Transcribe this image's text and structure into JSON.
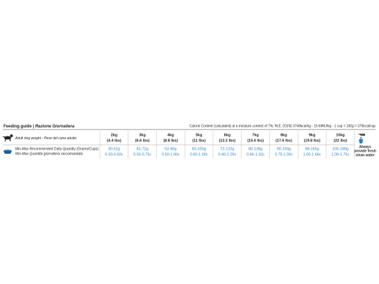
{
  "header": {
    "title": "Feeding guide",
    "separator": "|",
    "subtitle": "Razione Giornaliera",
    "calorie_note": "Calorie Content (calculated) at a moisture content of 7%: M.E. (CEN) 3749kcal/kg - 15.69MJ/kg - 1 cup = 100g = 375kcal/cup"
  },
  "table": {
    "weight_label": "Adult dog weight",
    "weight_label_it": "- Peso del cane adulto",
    "quantity_label": "Min-Max Recommended Daily Quantity (Grams/Cups)",
    "quantity_label_it": "Min-Max Quantità giornaliera raccomandata",
    "weights_kg": [
      "2kg",
      "3kg",
      "4kg",
      "5kg",
      "6kg",
      "7kg",
      "8kg",
      "9kg",
      "10kg"
    ],
    "weights_lbs": [
      "(4.4 lbs)",
      "(6.6 lbs)",
      "(8.8 lbs)",
      "(11 lbs)",
      "(13.2 lbs)",
      "(15.4 lbs)",
      "(17.6 lbs)",
      "(19.8 lbs)",
      "(22 lbs)"
    ],
    "grams": [
      "30-52g",
      "42-72g",
      "52-90g",
      "60-100g",
      "72-122g",
      "80-138g",
      "90-150g",
      "98-165g",
      "105-180g"
    ],
    "cups": [
      "0.33-0.50c",
      "0.50-0.75c",
      "0.50-1.00c",
      "0.60-1.00c",
      "0.66-1.25c",
      "0.66-1.33c",
      "0.75-1.50c",
      "1.00-1.66c",
      "1.00-1.75c"
    ]
  },
  "water_note": [
    "Always",
    "provide fresh",
    "clean water"
  ]
}
